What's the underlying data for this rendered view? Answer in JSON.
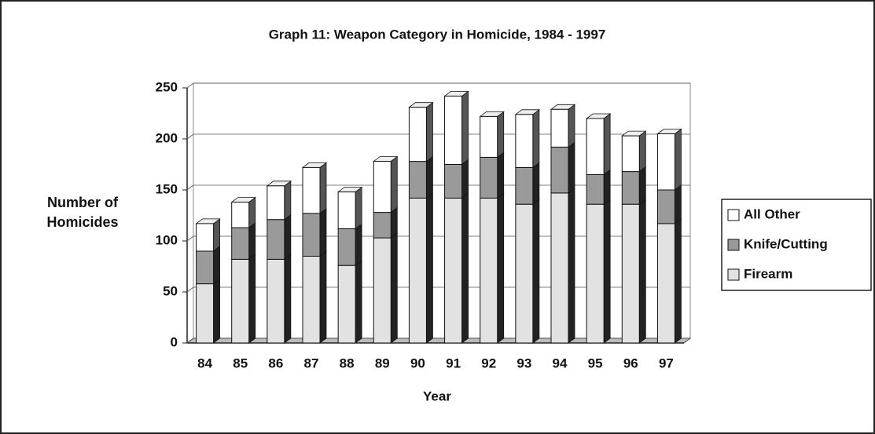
{
  "chart_data": {
    "type": "stacked_bar",
    "title": "Graph 11: Weapon Category in Homicide, 1984 - 1997",
    "x_label": "Year",
    "y_label": "Number of Homicides",
    "categories": [
      "84",
      "85",
      "86",
      "87",
      "88",
      "89",
      "90",
      "91",
      "92",
      "93",
      "94",
      "95",
      "96",
      "97"
    ],
    "series": [
      {
        "name": "Firearm",
        "color": "#e2e2e2",
        "values": [
          58,
          82,
          82,
          85,
          76,
          103,
          142,
          142,
          142,
          136,
          147,
          136,
          136,
          117
        ]
      },
      {
        "name": "Knife/Cutting",
        "color": "#9a9a9a",
        "values": [
          32,
          31,
          39,
          42,
          36,
          25,
          36,
          33,
          40,
          36,
          45,
          29,
          32,
          33
        ]
      },
      {
        "name": "All Other",
        "color": "#ffffff",
        "values": [
          27,
          25,
          33,
          45,
          36,
          50,
          53,
          67,
          40,
          52,
          37,
          55,
          35,
          55
        ]
      }
    ],
    "ylim": [
      0,
      250
    ],
    "yticks": [
      0,
      50,
      100,
      150,
      200,
      250
    ],
    "grid": true,
    "legend": "right"
  }
}
